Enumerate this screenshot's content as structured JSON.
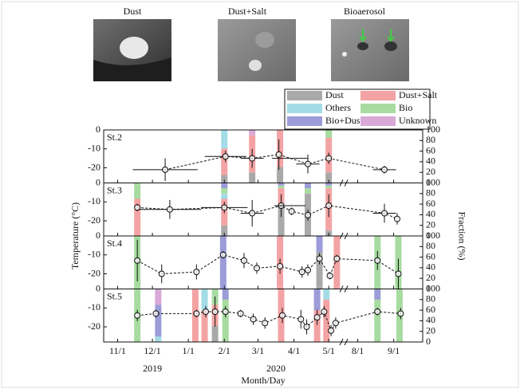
{
  "images": [
    "Dust",
    "Dust+Salt",
    "Bioaerosol"
  ],
  "chart_data": {
    "type": "panels",
    "xlabel": "Month/Day",
    "ylabel": "Temperature (°C)",
    "y2label": "Fraction (%)",
    "years": [
      "2019",
      "2020"
    ],
    "xlim": [
      -12,
      330
    ],
    "xbreak": [
      195,
      262
    ],
    "xticks": [
      {
        "value": 0,
        "label": "11/1"
      },
      {
        "value": 30,
        "label": "12/1"
      },
      {
        "value": 61,
        "label": "1/1"
      },
      {
        "value": 92,
        "label": "2/1"
      },
      {
        "value": 121,
        "label": "3/1"
      },
      {
        "value": 152,
        "label": "4/1"
      },
      {
        "value": 182,
        "label": "5/1"
      },
      {
        "value": 274,
        "label": "8/1"
      },
      {
        "value": 305,
        "label": "9/1"
      }
    ],
    "ylim": [
      -28,
      0
    ],
    "yticks": [
      0,
      -10,
      -20
    ],
    "y2lim": [
      0,
      100
    ],
    "y2ticks": [
      0,
      20,
      40,
      60,
      80,
      100
    ],
    "classes": [
      {
        "name": "Dust",
        "color": "#a9a9a9"
      },
      {
        "name": "Dust+Salt",
        "color": "#f3a3a3"
      },
      {
        "name": "Others",
        "color": "#a3dbe6"
      },
      {
        "name": "Bio",
        "color": "#a7dba0"
      },
      {
        "name": "Bio+Dust",
        "color": "#9c9cd8"
      },
      {
        "name": "Unknown",
        "color": "#d8a9d7"
      }
    ],
    "panels": [
      {
        "label": "St.2",
        "points": [
          {
            "x": 41,
            "y": -21,
            "xerr": 28,
            "yerr": 6
          },
          {
            "x": 93,
            "y": -14,
            "xerr": 18,
            "yerr": 3
          },
          {
            "x": 116,
            "y": -15,
            "xerr": 10,
            "yerr": 5
          },
          {
            "x": 139,
            "y": -13,
            "yerr": 8
          },
          {
            "x": 164,
            "y": -18,
            "xerr": 10,
            "yerr": 5
          },
          {
            "x": 182,
            "y": -15,
            "xerr": 18,
            "yerr": 3
          },
          {
            "x": 297,
            "y": -21,
            "xerr": 10,
            "yerr": 2
          }
        ],
        "bars": [
          {
            "x": 92,
            "fractions": [
              15,
              50,
              35,
              0,
              0,
              0
            ]
          },
          {
            "x": 116,
            "fractions": [
              20,
              70,
              0,
              0,
              0,
              10
            ]
          },
          {
            "x": 140,
            "fractions": [
              30,
              70,
              0,
              0,
              0,
              0
            ]
          },
          {
            "x": 182,
            "fractions": [
              20,
              65,
              0,
              15,
              0,
              0
            ]
          }
        ]
      },
      {
        "label": "St.3",
        "points": [
          {
            "x": 17,
            "y": -13,
            "yerr": 2
          },
          {
            "x": 45,
            "y": -14,
            "xerr": 27,
            "yerr": 5
          },
          {
            "x": 92,
            "y": -13,
            "xerr": 20,
            "yerr": 3
          },
          {
            "x": 116,
            "y": -16,
            "xerr": 10,
            "yerr": 7
          },
          {
            "x": 141,
            "y": -12,
            "yerr": 6
          },
          {
            "x": 150,
            "y": -15,
            "yerr": 2
          },
          {
            "x": 164,
            "y": -17,
            "yerr": 3
          },
          {
            "x": 182,
            "y": -12,
            "xerr": 20,
            "yerr": 6
          },
          {
            "x": 297,
            "y": -16,
            "xerr": 10,
            "yerr": 5
          },
          {
            "x": 308,
            "y": -19,
            "yerr": 3
          }
        ],
        "bars": [
          {
            "x": 17,
            "fractions": [
              0,
              70,
              0,
              30,
              0,
              0
            ]
          },
          {
            "x": 92,
            "fractions": [
              20,
              50,
              10,
              10,
              10,
              0
            ]
          },
          {
            "x": 141,
            "fractions": [
              60,
              30,
              0,
              5,
              5,
              0
            ]
          },
          {
            "x": 164,
            "fractions": [
              80,
              0,
              0,
              10,
              10,
              0
            ]
          },
          {
            "x": 182,
            "fractions": [
              10,
              80,
              0,
              5,
              5,
              0
            ]
          }
        ]
      },
      {
        "label": "St.4",
        "points": [
          {
            "x": 17,
            "y": -13,
            "yerr": 11
          },
          {
            "x": 38,
            "y": -20,
            "yerr": 5
          },
          {
            "x": 68,
            "y": -19,
            "yerr": 4
          },
          {
            "x": 91,
            "y": -10,
            "yerr": 2
          },
          {
            "x": 109,
            "y": -13,
            "yerr": 4
          },
          {
            "x": 120,
            "y": -17,
            "yerr": 3
          },
          {
            "x": 140,
            "y": -16,
            "yerr": 4
          },
          {
            "x": 159,
            "y": -19,
            "yerr": 3
          },
          {
            "x": 164,
            "y": -18,
            "yerr": 3
          },
          {
            "x": 174,
            "y": -12,
            "yerr": 3
          },
          {
            "x": 183,
            "y": -21,
            "yerr": 2
          },
          {
            "x": 189,
            "y": -12,
            "yerr": 2
          },
          {
            "x": 291,
            "y": -13,
            "yerr": 5
          },
          {
            "x": 309,
            "y": -20,
            "yerr": 8
          }
        ],
        "bars": [
          {
            "x": 17,
            "fractions": [
              0,
              0,
              0,
              100,
              0,
              0
            ]
          },
          {
            "x": 91,
            "fractions": [
              0,
              0,
              0,
              0,
              100,
              0
            ]
          },
          {
            "x": 140,
            "fractions": [
              0,
              100,
              0,
              0,
              0,
              0
            ]
          },
          {
            "x": 174,
            "fractions": [
              70,
              0,
              0,
              0,
              30,
              0
            ]
          },
          {
            "x": 189,
            "fractions": [
              0,
              100,
              0,
              0,
              0,
              0
            ]
          },
          {
            "x": 291,
            "fractions": [
              0,
              0,
              0,
              100,
              0,
              0
            ]
          },
          {
            "x": 309,
            "fractions": [
              0,
              0,
              0,
              100,
              0,
              0
            ]
          }
        ]
      },
      {
        "label": "St.5",
        "points": [
          {
            "x": 17,
            "y": -14,
            "yerr": 3
          },
          {
            "x": 33,
            "y": -13,
            "yerr": 2
          },
          {
            "x": 68,
            "y": -13,
            "yerr": 2
          },
          {
            "x": 76,
            "y": -12,
            "yerr": 3
          },
          {
            "x": 84,
            "y": -12,
            "yerr": 8
          },
          {
            "x": 93,
            "y": -12,
            "yerr": 3
          },
          {
            "x": 106,
            "y": -13,
            "yerr": 2
          },
          {
            "x": 117,
            "y": -16,
            "yerr": 3
          },
          {
            "x": 127,
            "y": -18,
            "yerr": 3
          },
          {
            "x": 142,
            "y": -14,
            "yerr": 4
          },
          {
            "x": 158,
            "y": -16,
            "yerr": 5
          },
          {
            "x": 163,
            "y": -20,
            "yerr": 4
          },
          {
            "x": 172,
            "y": -15,
            "yerr": 4
          },
          {
            "x": 178,
            "y": -12,
            "yerr": 3
          },
          {
            "x": 184,
            "y": -22,
            "yerr": 3
          },
          {
            "x": 188,
            "y": -18,
            "yerr": 3
          },
          {
            "x": 291,
            "y": -12,
            "yerr": 2
          },
          {
            "x": 311,
            "y": -13,
            "yerr": 3
          }
        ],
        "bars": [
          {
            "x": 17,
            "fractions": [
              0,
              0,
              0,
              100,
              0,
              0
            ]
          },
          {
            "x": 35,
            "fractions": [
              0,
              0,
              10,
              0,
              60,
              30
            ]
          },
          {
            "x": 67,
            "fractions": [
              0,
              100,
              0,
              0,
              0,
              0
            ]
          },
          {
            "x": 75,
            "fractions": [
              0,
              60,
              40,
              0,
              0,
              0
            ]
          },
          {
            "x": 84,
            "fractions": [
              30,
              40,
              0,
              30,
              0,
              0
            ]
          },
          {
            "x": 93,
            "fractions": [
              0,
              0,
              0,
              80,
              20,
              0
            ]
          },
          {
            "x": 141,
            "fractions": [
              0,
              100,
              0,
              0,
              0,
              0
            ]
          },
          {
            "x": 172,
            "fractions": [
              0,
              60,
              0,
              0,
              40,
              0
            ]
          },
          {
            "x": 180,
            "fractions": [
              0,
              80,
              20,
              0,
              0,
              0
            ]
          },
          {
            "x": 291,
            "fractions": [
              0,
              0,
              0,
              80,
              20,
              0
            ]
          },
          {
            "x": 310,
            "fractions": [
              0,
              0,
              0,
              100,
              0,
              0
            ]
          }
        ]
      }
    ]
  }
}
